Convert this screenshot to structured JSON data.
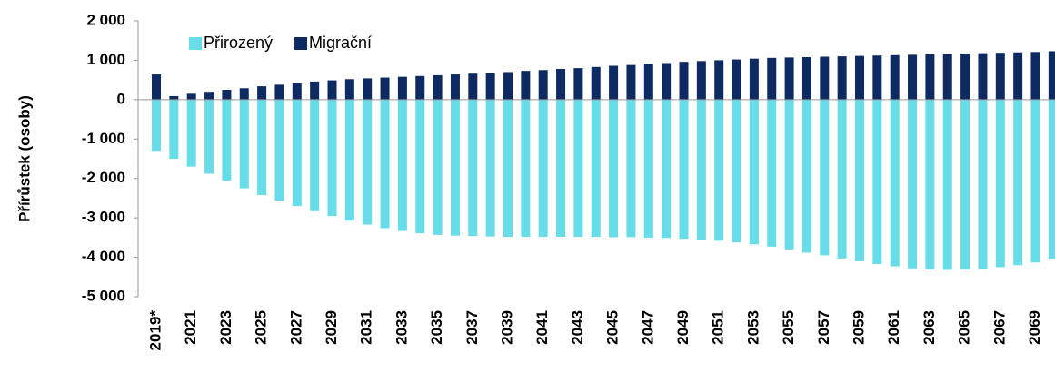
{
  "chart_data": {
    "type": "bar",
    "y_label": "Přírůstek (osoby)",
    "categories": [
      "2019*",
      null,
      "2021",
      null,
      "2023",
      null,
      "2025",
      null,
      "2027",
      null,
      "2029",
      null,
      "2031",
      null,
      "2033",
      null,
      "2035",
      null,
      "2037",
      null,
      "2039",
      null,
      "2041",
      null,
      "2043",
      null,
      "2045",
      null,
      "2047",
      null,
      "2049",
      null,
      "2051",
      null,
      "2053",
      null,
      "2055",
      null,
      "2057",
      null,
      "2059",
      null,
      "2061",
      null,
      "2063",
      null,
      "2065",
      null,
      "2067",
      null,
      "2069",
      null
    ],
    "series": [
      {
        "name": "Přirozený",
        "color": "#66dde8",
        "values": [
          -1300,
          -1500,
          -1700,
          -1880,
          -2060,
          -2250,
          -2420,
          -2560,
          -2700,
          -2830,
          -2950,
          -3070,
          -3170,
          -3260,
          -3330,
          -3390,
          -3430,
          -3450,
          -3460,
          -3470,
          -3480,
          -3480,
          -3480,
          -3480,
          -3480,
          -3480,
          -3490,
          -3490,
          -3500,
          -3510,
          -3530,
          -3550,
          -3580,
          -3620,
          -3670,
          -3730,
          -3800,
          -3880,
          -3950,
          -4030,
          -4100,
          -4170,
          -4230,
          -4280,
          -4310,
          -4320,
          -4310,
          -4290,
          -4250,
          -4200,
          -4130,
          -4040
        ]
      },
      {
        "name": "Migrační",
        "color": "#0e2a63",
        "values": [
          640,
          90,
          150,
          200,
          250,
          290,
          340,
          380,
          420,
          460,
          490,
          520,
          540,
          560,
          580,
          600,
          620,
          640,
          660,
          680,
          700,
          730,
          750,
          780,
          800,
          830,
          860,
          880,
          910,
          930,
          960,
          980,
          1000,
          1020,
          1040,
          1060,
          1070,
          1080,
          1090,
          1100,
          1110,
          1120,
          1130,
          1140,
          1150,
          1160,
          1170,
          1180,
          1190,
          1200,
          1210,
          1230
        ]
      }
    ],
    "ylim": [
      -5000,
      2000
    ],
    "yticks": [
      {
        "value": -5000,
        "label": "-5 000"
      },
      {
        "value": -4000,
        "label": "-4 000"
      },
      {
        "value": -3000,
        "label": "-3 000"
      },
      {
        "value": -2000,
        "label": "-2 000"
      },
      {
        "value": -1000,
        "label": "-1 000"
      },
      0,
      {
        "value": 1000,
        "label": "1 000"
      },
      {
        "value": 2000,
        "label": "2 000"
      }
    ],
    "legend": "top-left"
  }
}
